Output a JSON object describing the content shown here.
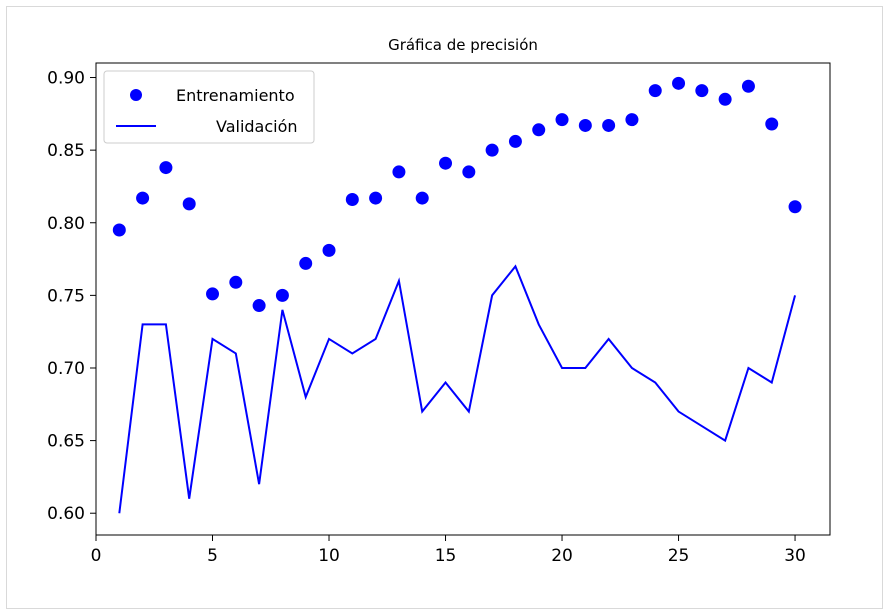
{
  "chart_data": {
    "type": "line",
    "title": "Gráfica de precisión",
    "xlabel": "",
    "ylabel": "",
    "xlim": [
      0,
      31.5
    ],
    "ylim": [
      0.585,
      0.91
    ],
    "xticks": [
      0,
      5,
      10,
      15,
      20,
      25,
      30
    ],
    "xtick_labels": [
      "0",
      "5",
      "10",
      "15",
      "20",
      "25",
      "30"
    ],
    "yticks": [
      0.6,
      0.65,
      0.7,
      0.75,
      0.8,
      0.85,
      0.9
    ],
    "ytick_labels": [
      "0.60",
      "0.65",
      "0.70",
      "0.75",
      "0.80",
      "0.85",
      "0.90"
    ],
    "grid": false,
    "legend_position": "top-left",
    "x": [
      1,
      2,
      3,
      4,
      5,
      6,
      7,
      8,
      9,
      10,
      11,
      12,
      13,
      14,
      15,
      16,
      17,
      18,
      19,
      20,
      21,
      22,
      23,
      24,
      25,
      26,
      27,
      28,
      29,
      30
    ],
    "series": [
      {
        "name": "Entrenamiento",
        "style": "scatter",
        "color": "#0000ff",
        "values": [
          0.795,
          0.817,
          0.838,
          0.813,
          0.751,
          0.759,
          0.743,
          0.75,
          0.772,
          0.781,
          0.816,
          0.817,
          0.835,
          0.817,
          0.841,
          0.835,
          0.85,
          0.856,
          0.864,
          0.871,
          0.867,
          0.867,
          0.871,
          0.891,
          0.896,
          0.891,
          0.885,
          0.894,
          0.868,
          0.811
        ]
      },
      {
        "name": "Validación",
        "style": "line",
        "color": "#0000ff",
        "values": [
          0.6,
          0.73,
          0.73,
          0.61,
          0.72,
          0.71,
          0.62,
          0.74,
          0.68,
          0.72,
          0.71,
          0.72,
          0.76,
          0.67,
          0.69,
          0.67,
          0.75,
          0.77,
          0.73,
          0.7,
          0.7,
          0.72,
          0.7,
          0.69,
          0.67,
          0.66,
          0.65,
          0.7,
          0.69,
          0.75
        ]
      }
    ]
  }
}
